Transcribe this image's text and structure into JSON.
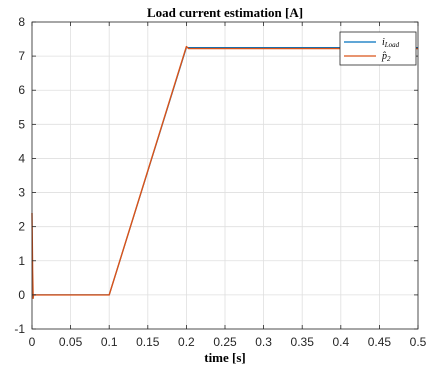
{
  "chart_data": {
    "type": "line",
    "title": "Load current estimation [A]",
    "xlabel": "time [s]",
    "ylabel": "",
    "xlim": [
      0,
      0.5
    ],
    "ylim": [
      -1,
      8
    ],
    "xticks": [
      0,
      0.05,
      0.1,
      0.15,
      0.2,
      0.25,
      0.3,
      0.35,
      0.4,
      0.45,
      0.5
    ],
    "xtick_labels": [
      "0",
      "0.05",
      "0.1",
      "0.15",
      "0.2",
      "0.25",
      "0.3",
      "0.35",
      "0.4",
      "0.45",
      "0.5"
    ],
    "yticks": [
      -1,
      0,
      1,
      2,
      3,
      4,
      5,
      6,
      7,
      8
    ],
    "ytick_labels": [
      "-1",
      "0",
      "1",
      "2",
      "3",
      "4",
      "5",
      "6",
      "7",
      "8"
    ],
    "grid": true,
    "legend_position": "top-right",
    "series": [
      {
        "name": "i_Load",
        "legend_main": "i",
        "legend_sub": "Load",
        "color": "#0072BD",
        "x": [
          0,
          0.1,
          0.2,
          0.5
        ],
        "y": [
          0,
          0,
          7.25,
          7.25
        ]
      },
      {
        "name": "p̂2",
        "legend_main": "p̂",
        "legend_sub": "2",
        "color": "#D95319",
        "x": [
          0,
          0.0008,
          0.0015,
          0.002,
          0.1,
          0.2,
          0.203,
          0.5
        ],
        "y": [
          2.4,
          0.7,
          -0.1,
          0,
          0,
          7.28,
          7.22,
          7.22
        ]
      }
    ]
  }
}
